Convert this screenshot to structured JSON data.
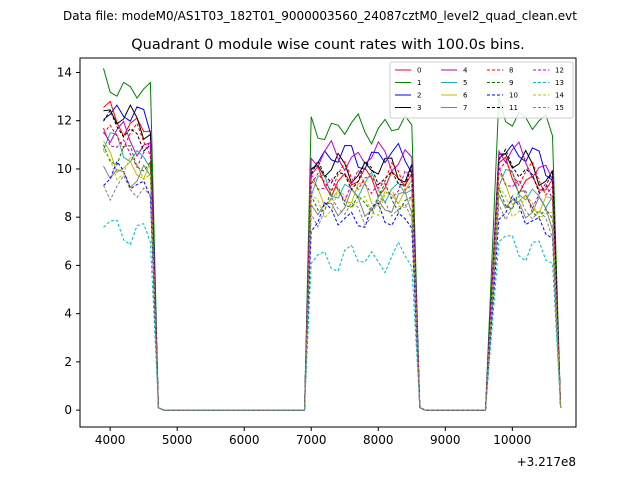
{
  "chart_data": {
    "type": "line",
    "suptitle": "Data file: modeM0/AS1T03_182T01_9000003560_24087cztM0_level2_quad_clean.evt",
    "title": "Quadrant 0 module wise count rates with 100.0s bins.",
    "xlabel": "",
    "ylabel": "",
    "x_offset_label": "+3.217e8",
    "xlim": [
      3550,
      10950
    ],
    "ylim": [
      -0.7,
      14.6
    ],
    "x_ticks": [
      4000,
      5000,
      6000,
      7000,
      8000,
      9000,
      10000
    ],
    "x_tick_labels": [
      "4000",
      "5000",
      "6000",
      "7000",
      "8000",
      "9000",
      "10000"
    ],
    "y_ticks": [
      0,
      2,
      4,
      6,
      8,
      10,
      12,
      14
    ],
    "y_tick_labels": [
      "0",
      "2",
      "4",
      "6",
      "8",
      "10",
      "12",
      "14"
    ],
    "grid": false,
    "legend_position": "top-right",
    "segments": [
      {
        "start": 3900,
        "step": 100,
        "active": 8,
        "stop": 4700
      },
      {
        "start": 4700,
        "step": 100,
        "active": 0,
        "stop": 6900
      },
      {
        "start": 7000,
        "step": 100,
        "active": 16,
        "stop": 8500
      },
      {
        "start": 8600,
        "step": 100,
        "active": 0,
        "stop": 9600
      },
      {
        "start": 9800,
        "step": 100,
        "active": 9,
        "stop": 10600
      }
    ],
    "series": [
      {
        "name": "0",
        "color": "#ff0000",
        "style": "solid",
        "levels": [
          12.0,
          9.5,
          10.0
        ]
      },
      {
        "name": "1",
        "color": "#008000",
        "style": "solid",
        "levels": [
          13.4,
          11.7,
          12.5
        ]
      },
      {
        "name": "2",
        "color": "#0000ff",
        "style": "solid",
        "levels": [
          12.3,
          10.5,
          11.0
        ]
      },
      {
        "name": "3",
        "color": "#000000",
        "style": "solid",
        "levels": [
          12.1,
          10.0,
          10.6
        ]
      },
      {
        "name": "4",
        "color": "#bf00bf",
        "style": "solid",
        "levels": [
          11.3,
          10.5,
          10.8
        ]
      },
      {
        "name": "5",
        "color": "#20b2aa",
        "style": "solid",
        "levels": [
          10.8,
          9.2,
          9.6
        ]
      },
      {
        "name": "6",
        "color": "#bfbf00",
        "style": "solid",
        "levels": [
          10.2,
          8.9,
          9.2
        ]
      },
      {
        "name": "7",
        "color": "#808080",
        "style": "solid",
        "levels": [
          9.8,
          8.5,
          8.9
        ]
      },
      {
        "name": "8",
        "color": "#ff0000",
        "style": "dashed",
        "levels": [
          11.4,
          9.6,
          10.2
        ]
      },
      {
        "name": "9",
        "color": "#008000",
        "style": "dashed",
        "levels": [
          10.5,
          8.7,
          9.0
        ]
      },
      {
        "name": "10",
        "color": "#0000ff",
        "style": "dashed",
        "levels": [
          9.6,
          8.0,
          8.5
        ]
      },
      {
        "name": "11",
        "color": "#000000",
        "style": "dashed",
        "levels": [
          11.6,
          9.7,
          10.3
        ]
      },
      {
        "name": "12",
        "color": "#bf00bf",
        "style": "dashed",
        "levels": [
          10.9,
          9.3,
          9.6
        ]
      },
      {
        "name": "13",
        "color": "#00bfbf",
        "style": "dashed",
        "levels": [
          7.5,
          6.3,
          7.2
        ]
      },
      {
        "name": "14",
        "color": "#bfbf00",
        "style": "dashed",
        "levels": [
          10.1,
          8.6,
          8.9
        ]
      },
      {
        "name": "15",
        "color": "#808080",
        "style": "dashed",
        "levels": [
          9.2,
          8.3,
          8.7
        ]
      }
    ]
  }
}
